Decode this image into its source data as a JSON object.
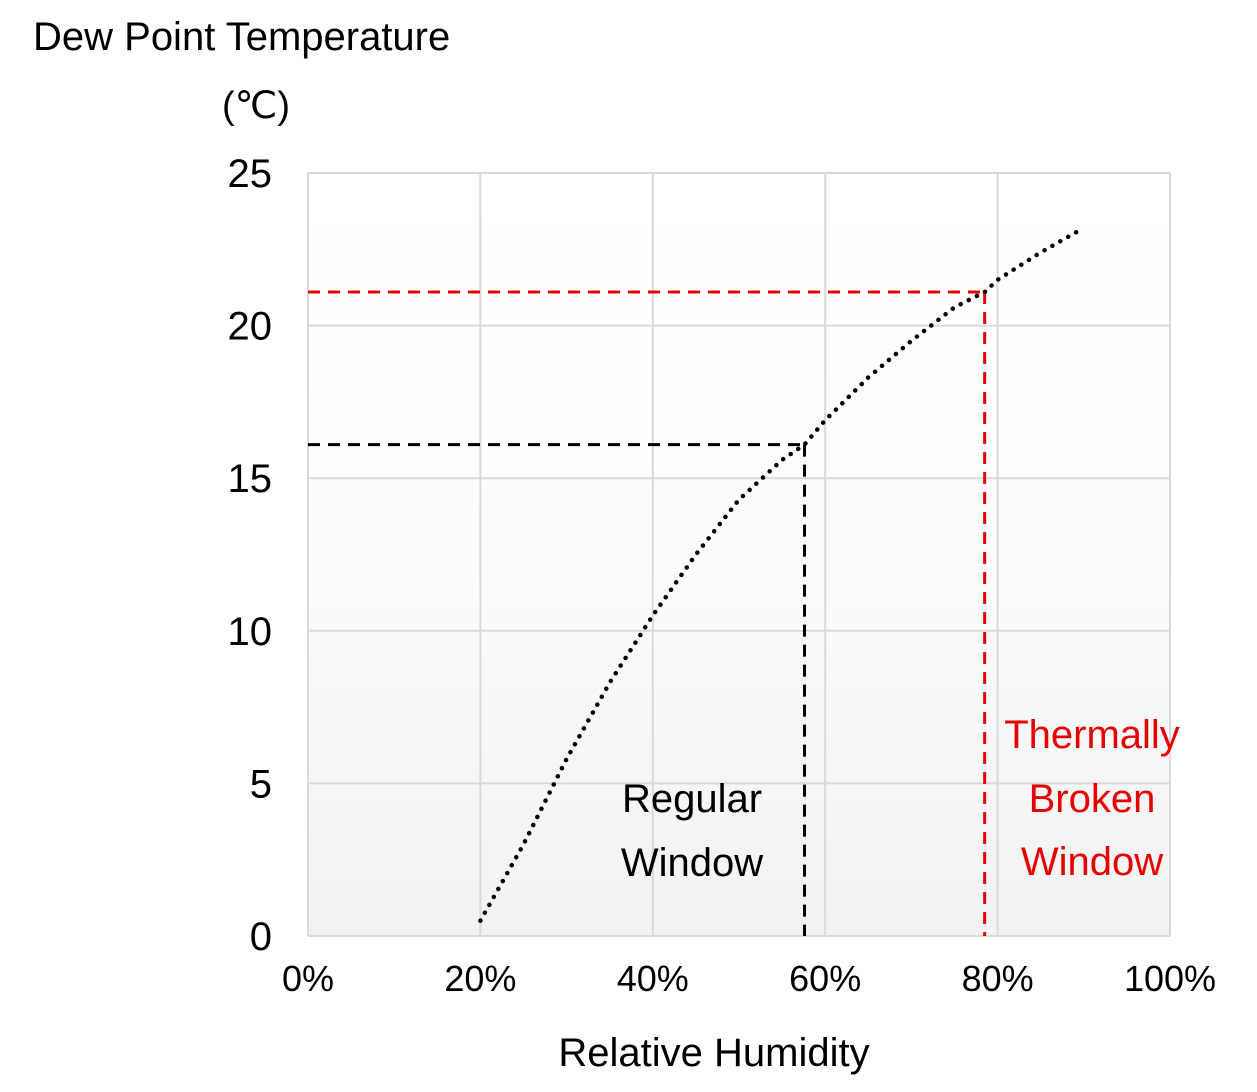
{
  "chart_data": {
    "type": "line",
    "title": "Dew Point Temperature",
    "y_unit": "(℃)",
    "xlabel": "Relative Humidity",
    "ylabel": "Dew Point Temperature",
    "xlim": [
      0,
      100
    ],
    "ylim": [
      0,
      25
    ],
    "x_ticks": [
      0,
      20,
      40,
      60,
      80,
      100
    ],
    "x_tick_labels": [
      "0%",
      "20%",
      "40%",
      "60%",
      "80%",
      "100%"
    ],
    "y_ticks": [
      0,
      5,
      10,
      15,
      20,
      25
    ],
    "y_tick_labels": [
      "0",
      "5",
      "10",
      "15",
      "20",
      "25"
    ],
    "grid": true,
    "series": [
      {
        "style": "dotted",
        "color": "#000000",
        "x": [
          20,
          25,
          30,
          35,
          40,
          45,
          50,
          55,
          57.6,
          60,
          65,
          70,
          75,
          78.5,
          80,
          85,
          90
        ],
        "y": [
          0.5,
          3.0,
          5.8,
          8.3,
          10.5,
          12.5,
          14.3,
          15.6,
          16.1,
          16.9,
          18.3,
          19.5,
          20.6,
          21.1,
          21.5,
          22.4,
          23.2
        ]
      }
    ],
    "reference_lines": [
      {
        "label_lines": [
          "Regular",
          "Window"
        ],
        "x": 57.6,
        "y": 16.1,
        "color": "#000000"
      },
      {
        "label_lines": [
          "Thermally",
          "Broken",
          "Window"
        ],
        "x": 78.5,
        "y": 21.1,
        "color": "#e60000"
      }
    ]
  }
}
